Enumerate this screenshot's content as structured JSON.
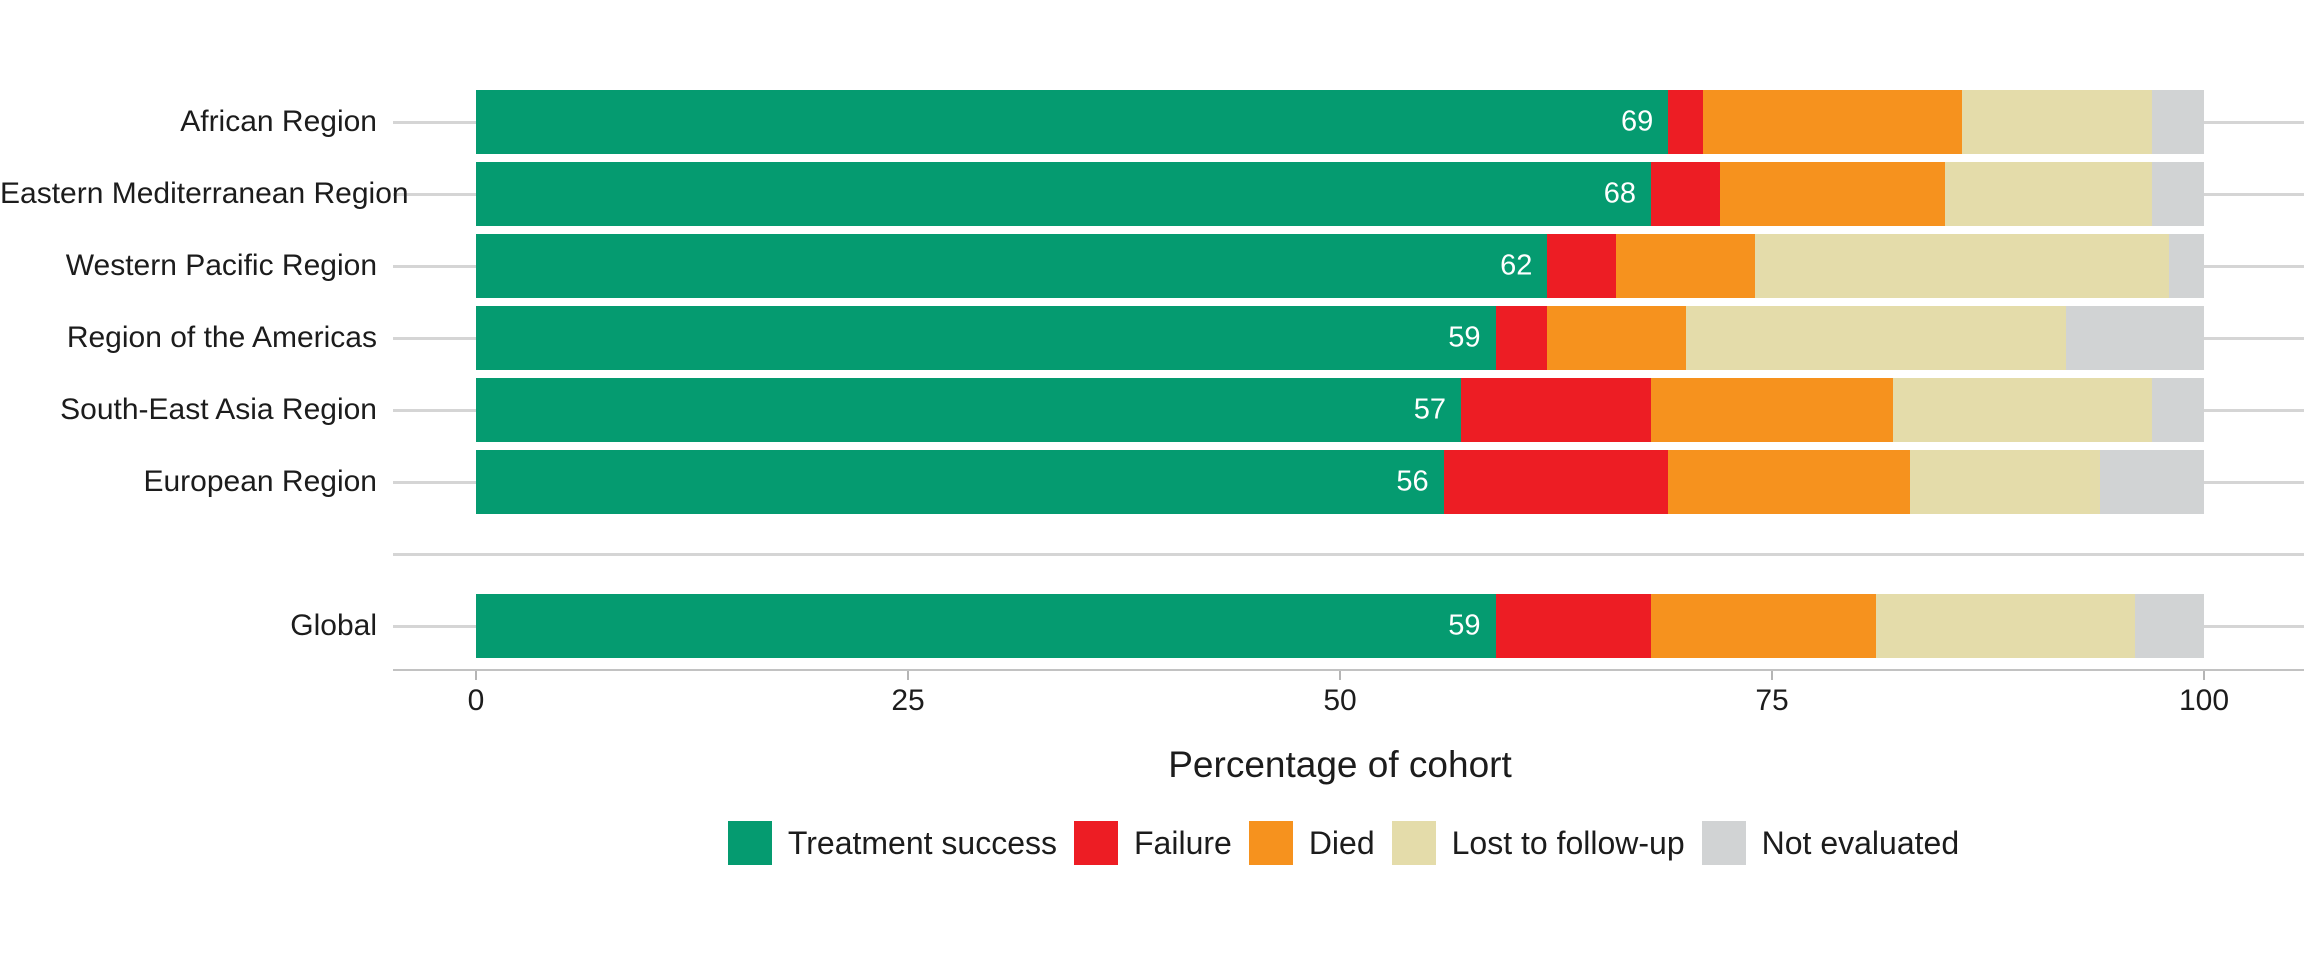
{
  "chart_data": {
    "type": "bar",
    "variant": "horizontal-stacked",
    "title": "",
    "xlabel": "Percentage of cohort",
    "ylabel": "",
    "xlim": [
      0,
      100
    ],
    "x_ticks": [
      0,
      25,
      50,
      75,
      100
    ],
    "grid": "horizontal category gridlines only",
    "legend_position": "bottom",
    "categories": [
      "African Region",
      "Eastern Mediterranean Region",
      "Western Pacific Region",
      "Region of the Americas",
      "South-East Asia Region",
      "European Region",
      "Global"
    ],
    "separator_before_category_index": 6,
    "series": [
      {
        "name": "Treatment success",
        "color": "#059b70",
        "values": [
          69,
          68,
          62,
          59,
          57,
          56,
          59
        ]
      },
      {
        "name": "Failure",
        "color": "#ed1d24",
        "values": [
          2,
          4,
          4,
          3,
          11,
          13,
          9
        ]
      },
      {
        "name": "Died",
        "color": "#f6921e",
        "values": [
          15,
          13,
          8,
          8,
          14,
          14,
          13
        ]
      },
      {
        "name": "Lost to follow-up",
        "color": "#e4dcaa",
        "values": [
          11,
          12,
          24,
          22,
          15,
          11,
          15
        ]
      },
      {
        "name": "Not evaluated",
        "color": "#d1d3d4",
        "values": [
          3,
          3,
          2,
          8,
          3,
          6,
          4
        ]
      }
    ],
    "bar_value_labels": [
      "69",
      "68",
      "62",
      "59",
      "57",
      "56",
      "59"
    ],
    "bar_value_label_series": "Treatment success",
    "colors": {
      "text": "#1c1c1c",
      "value_label_text": "#ffffff",
      "gridline": "#d5d5d5",
      "axis_line": "#c2c2c2",
      "background": "#ffffff"
    }
  }
}
